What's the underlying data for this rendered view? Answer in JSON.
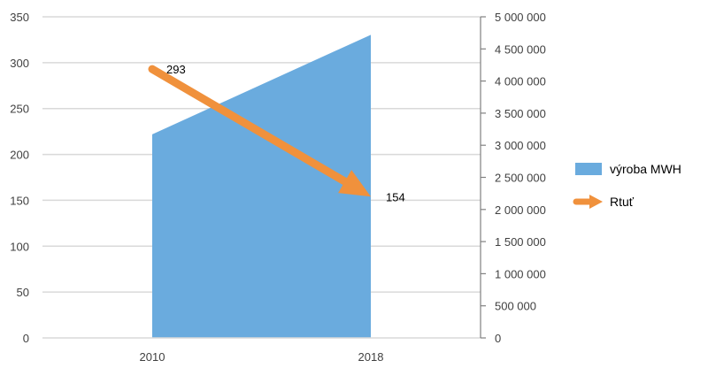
{
  "chart_data": {
    "type": "area",
    "categories": [
      "2010",
      "2018"
    ],
    "series": [
      {
        "name": "výroba MWH",
        "type": "area",
        "axis": "right",
        "values": [
          3170000,
          4720000
        ],
        "color": "#6aabde"
      },
      {
        "name": "Rtuť",
        "type": "line",
        "axis": "left",
        "values": [
          293,
          154
        ],
        "data_labels": [
          "293",
          "154"
        ],
        "color": "#f0913c",
        "marker": "arrow"
      }
    ],
    "y_left": {
      "ylim": [
        0,
        350
      ],
      "ticks": [
        0,
        50,
        100,
        150,
        200,
        250,
        300,
        350
      ],
      "tick_labels": [
        "0",
        "50",
        "100",
        "150",
        "200",
        "250",
        "300",
        "350"
      ]
    },
    "y_right": {
      "ylim": [
        0,
        5000000
      ],
      "ticks": [
        0,
        500000,
        1000000,
        1500000,
        2000000,
        2500000,
        3000000,
        3500000,
        4000000,
        4500000,
        5000000
      ],
      "tick_labels": [
        "0",
        "500 000",
        "1 000 000",
        "1 500 000",
        "2 000 000",
        "2 500 000",
        "3 000 000",
        "3 500 000",
        "4 000 000",
        "4 500 000",
        "5 000 000"
      ]
    },
    "grid": true,
    "legend_position": "right",
    "title": "",
    "xlabel": "",
    "ylabel": ""
  }
}
